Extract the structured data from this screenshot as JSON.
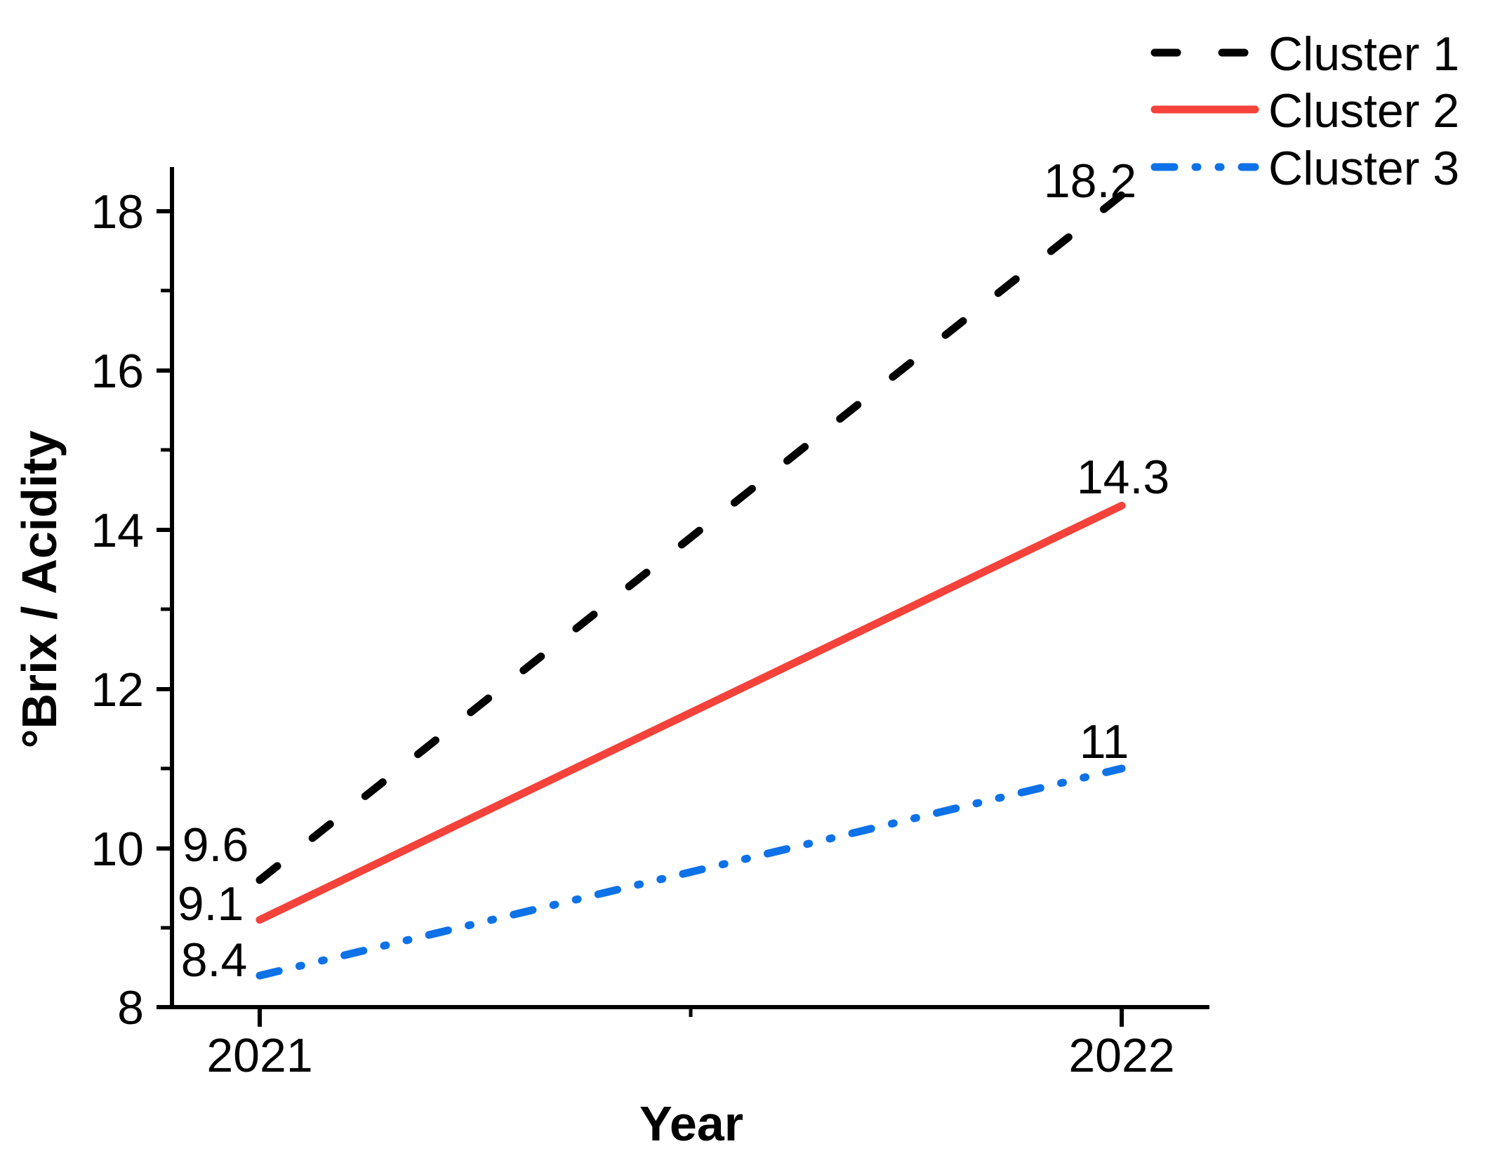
{
  "chart_data": {
    "type": "line",
    "title": "",
    "xlabel": "Year",
    "ylabel": "°Brix  / Acidity",
    "x": [
      2021,
      2022
    ],
    "x_tick_labels": [
      "2021",
      "2022"
    ],
    "y_tick_labels": [
      "8",
      "10",
      "12",
      "14",
      "16",
      "18"
    ],
    "y_ticks": [
      8,
      10,
      12,
      14,
      16,
      18
    ],
    "y_minor_ticks": [
      9,
      11,
      13,
      15,
      17
    ],
    "ylim": [
      8,
      18.56
    ],
    "xlim": [
      2020.88,
      2022.1
    ],
    "grid": false,
    "legend_position": "top-right",
    "background_color": "#ffffff",
    "axis_color": "#000000",
    "series": [
      {
        "name": "Cluster 1",
        "values": [
          9.6,
          18.2
        ],
        "color": "#000000",
        "line_style": "dashed",
        "start_label": "9.6",
        "end_label": "18.2"
      },
      {
        "name": "Cluster 2",
        "values": [
          9.1,
          14.3
        ],
        "color": "#f5423a",
        "line_style": "solid",
        "start_label": "9.1",
        "end_label": "14.3"
      },
      {
        "name": "Cluster 3",
        "values": [
          8.4,
          11
        ],
        "color": "#0d72e8",
        "line_style": "dash-dot-dot",
        "start_label": "8.4",
        "end_label": "11"
      }
    ]
  }
}
